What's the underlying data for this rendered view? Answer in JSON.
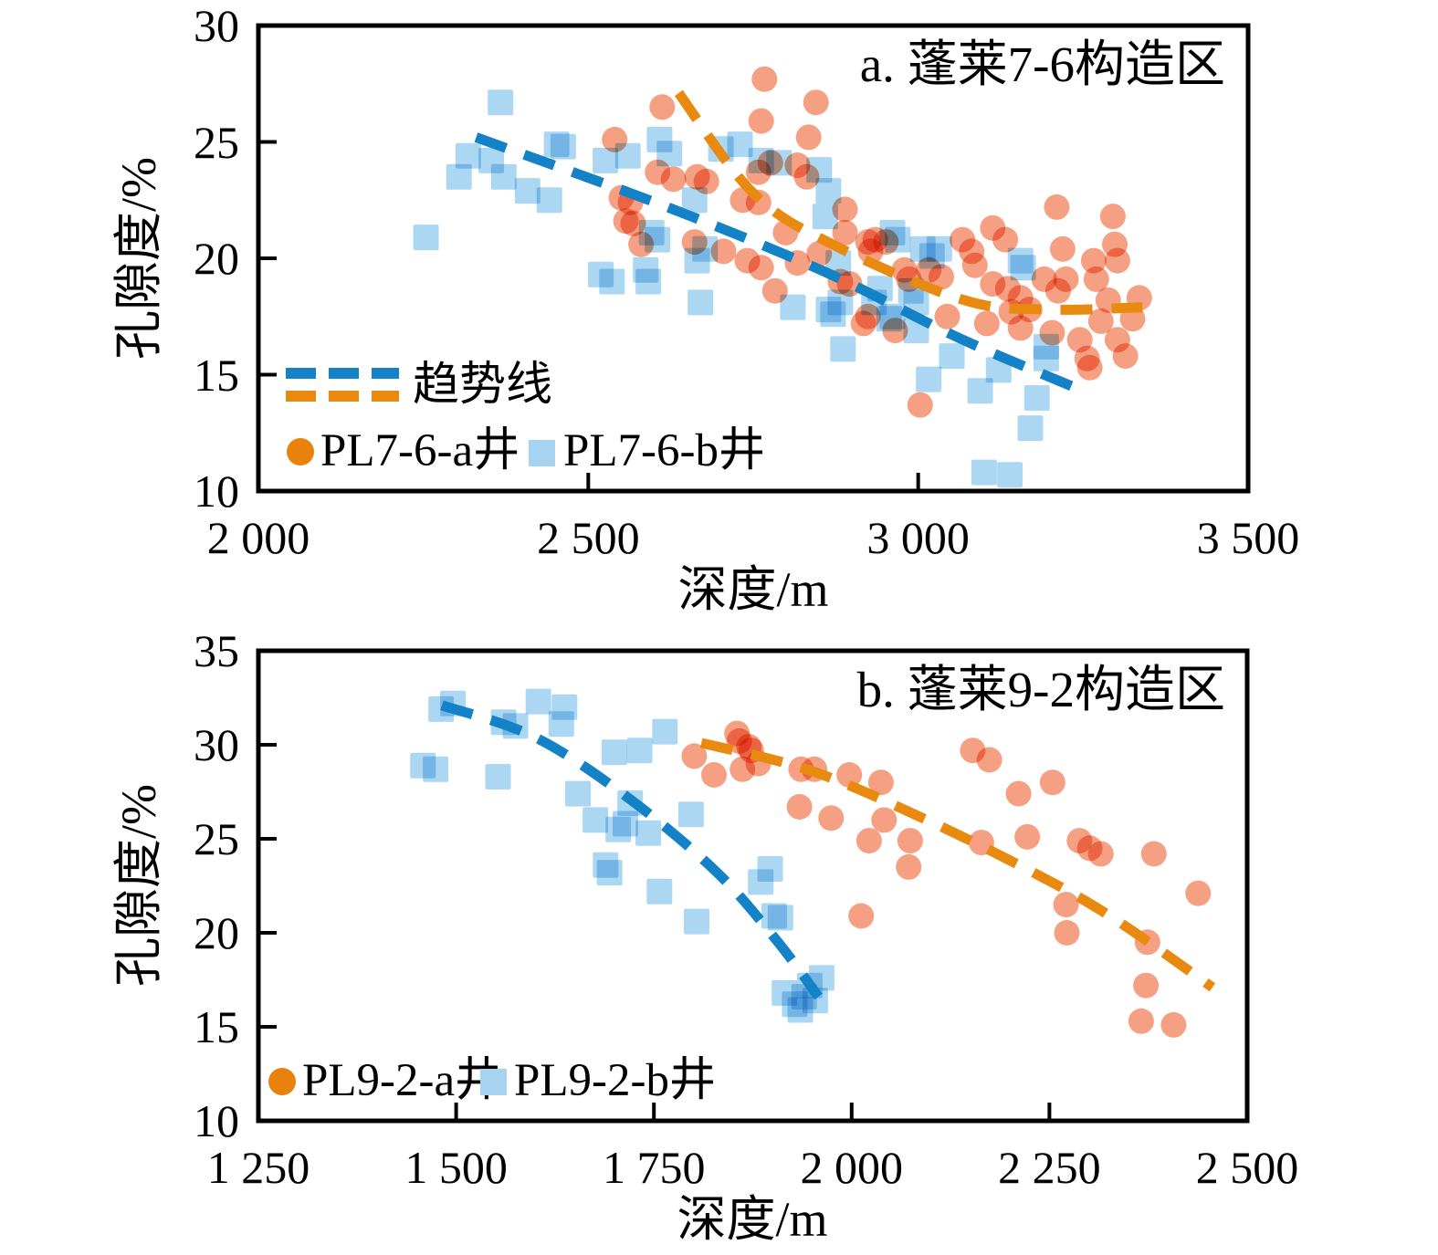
{
  "colors": {
    "marker_orange": "#F5A083",
    "marker_blue": "#ACD7F2",
    "legend_orange": "#E8820D",
    "legend_blue": "#A6D4F0",
    "trend_blue": "#1482C6",
    "trend_orange": "#E98A10",
    "axis": "#000000"
  },
  "chart_data": [
    {
      "panel": "a",
      "type": "scatter",
      "title": "a. 蓬莱7-6构造区",
      "xlabel": "深度/m",
      "ylabel": "孔隙度/%",
      "xlim": [
        2000,
        3500
      ],
      "ylim": [
        10,
        30
      ],
      "grid": false,
      "legend_position": "inside-lower-left",
      "xticks": [
        {
          "v": 2000,
          "label": "2 000"
        },
        {
          "v": 2500,
          "label": "2 500"
        },
        {
          "v": 3000,
          "label": "3 000"
        },
        {
          "v": 3500,
          "label": "3 500"
        }
      ],
      "yticks": [
        {
          "v": 10,
          "label": "10"
        },
        {
          "v": 15,
          "label": "15"
        },
        {
          "v": 20,
          "label": "20"
        },
        {
          "v": 25,
          "label": "25"
        },
        {
          "v": 30,
          "label": "30"
        }
      ],
      "legend": {
        "trend_label": "趋势线"
      },
      "series": [
        {
          "name": "PL7-6-a井",
          "marker": "circle",
          "points": [
            [
              2612,
              26.5
            ],
            [
              2767,
              27.7
            ],
            [
              2845,
              26.7
            ],
            [
              2540,
              25.1
            ],
            [
              2605,
              23.7
            ],
            [
              2629,
              23.4
            ],
            [
              2665,
              23.5
            ],
            [
              2679,
              23.3
            ],
            [
              2550,
              22.6
            ],
            [
              2564,
              22.4
            ],
            [
              2557,
              21.6
            ],
            [
              2568,
              21.5
            ],
            [
              2580,
              20.6
            ],
            [
              2661,
              20.7
            ],
            [
              2705,
              20.3
            ],
            [
              2762,
              25.9
            ],
            [
              2834,
              25.2
            ],
            [
              2758,
              23.7
            ],
            [
              2776,
              24.1
            ],
            [
              2734,
              22.5
            ],
            [
              2758,
              22.4
            ],
            [
              2817,
              24.0
            ],
            [
              2831,
              23.5
            ],
            [
              2799,
              21.1
            ],
            [
              2741,
              19.9
            ],
            [
              2762,
              19.6
            ],
            [
              2783,
              18.6
            ],
            [
              2817,
              19.8
            ],
            [
              2850,
              20.2
            ],
            [
              2889,
              22.1
            ],
            [
              2889,
              21.1
            ],
            [
              2896,
              18.9
            ],
            [
              2882,
              19.0
            ],
            [
              2924,
              20.7
            ],
            [
              2935,
              20.8
            ],
            [
              2951,
              20.7
            ],
            [
              2928,
              20.3
            ],
            [
              2979,
              19.5
            ],
            [
              2986,
              19.1
            ],
            [
              3016,
              19.5
            ],
            [
              3035,
              19.2
            ],
            [
              3067,
              20.8
            ],
            [
              3081,
              20.3
            ],
            [
              3086,
              19.7
            ],
            [
              3113,
              21.3
            ],
            [
              3132,
              20.8
            ],
            [
              3113,
              18.9
            ],
            [
              3136,
              18.7
            ],
            [
              3155,
              18.3
            ],
            [
              3141,
              17.7
            ],
            [
              3169,
              17.8
            ],
            [
              3191,
              19.1
            ],
            [
              3210,
              22.2
            ],
            [
              3219,
              20.4
            ],
            [
              3224,
              19.1
            ],
            [
              3212,
              18.6
            ],
            [
              3266,
              19.9
            ],
            [
              3270,
              19.1
            ],
            [
              3288,
              18.2
            ],
            [
              3295,
              21.8
            ],
            [
              3298,
              20.6
            ],
            [
              3302,
              19.9
            ],
            [
              3335,
              18.3
            ],
            [
              2917,
              17.2
            ],
            [
              2924,
              17.5
            ],
            [
              2965,
              16.9
            ],
            [
              3044,
              17.5
            ],
            [
              3104,
              17.2
            ],
            [
              3155,
              17.0
            ],
            [
              3203,
              16.8
            ],
            [
              3256,
              15.7
            ],
            [
              3260,
              15.3
            ],
            [
              3302,
              16.5
            ],
            [
              3314,
              15.8
            ],
            [
              3325,
              17.4
            ],
            [
              3003,
              13.7
            ],
            [
              3277,
              17.3
            ],
            [
              3245,
              16.5
            ]
          ]
        },
        {
          "name": "PL7-6-b井",
          "marker": "square",
          "points": [
            [
              2367,
              26.7
            ],
            [
              2318,
              24.4
            ],
            [
              2353,
              24.2
            ],
            [
              2304,
              23.5
            ],
            [
              2372,
              23.5
            ],
            [
              2408,
              22.9
            ],
            [
              2441,
              22.5
            ],
            [
              2452,
              24.9
            ],
            [
              2462,
              24.8
            ],
            [
              2254,
              20.9
            ],
            [
              2526,
              24.2
            ],
            [
              2560,
              24.4
            ],
            [
              2608,
              25.1
            ],
            [
              2623,
              24.5
            ],
            [
              2701,
              24.7
            ],
            [
              2789,
              24.1
            ],
            [
              2596,
              21.1
            ],
            [
              2605,
              20.8
            ],
            [
              2661,
              22.5
            ],
            [
              2677,
              20.4
            ],
            [
              2665,
              19.9
            ],
            [
              2519,
              19.3
            ],
            [
              2536,
              19.0
            ],
            [
              2587,
              19.5
            ],
            [
              2591,
              19.0
            ],
            [
              2670,
              18.1
            ],
            [
              2730,
              24.9
            ],
            [
              2762,
              24.2
            ],
            [
              2850,
              23.8
            ],
            [
              2864,
              22.9
            ],
            [
              2859,
              21.8
            ],
            [
              2879,
              19.8
            ],
            [
              2961,
              21.1
            ],
            [
              2969,
              20.8
            ],
            [
              3007,
              20.4
            ],
            [
              3021,
              20.1
            ],
            [
              3032,
              20.4
            ],
            [
              3155,
              19.9
            ],
            [
              3159,
              19.6
            ],
            [
              2942,
              18.7
            ],
            [
              2989,
              18.6
            ],
            [
              2933,
              18.1
            ],
            [
              2997,
              18.1
            ],
            [
              2961,
              17.5
            ],
            [
              2882,
              18.1
            ],
            [
              2864,
              17.8
            ],
            [
              2810,
              17.9
            ],
            [
              2871,
              17.6
            ],
            [
              2956,
              17.4
            ],
            [
              2997,
              16.9
            ],
            [
              3051,
              15.8
            ],
            [
              3016,
              14.8
            ],
            [
              3094,
              14.3
            ],
            [
              3122,
              15.2
            ],
            [
              3194,
              16.2
            ],
            [
              3194,
              15.7
            ],
            [
              3180,
              14.0
            ],
            [
              3170,
              12.7
            ],
            [
              3100,
              10.8
            ],
            [
              3139,
              10.7
            ],
            [
              2886,
              16.1
            ]
          ]
        }
      ],
      "trends": [
        {
          "name": "PL7-6-b趋势",
          "color_key": "trend_blue",
          "points": [
            [
              2330,
              25.2
            ],
            [
              2620,
              22.2
            ],
            [
              2860,
              19.4
            ],
            [
              3060,
              16.6
            ],
            [
              3250,
              14.3
            ]
          ]
        },
        {
          "name": "PL7-6-a趋势",
          "color_key": "trend_orange",
          "points": [
            [
              2637,
              27.1
            ],
            [
              2750,
              22.8
            ],
            [
              2870,
              20.6
            ],
            [
              3070,
              18.2
            ],
            [
              3200,
              17.8
            ],
            [
              3340,
              17.9
            ]
          ]
        }
      ]
    },
    {
      "panel": "b",
      "type": "scatter",
      "title": "b. 蓬莱9-2构造区",
      "xlabel": "深度/m",
      "ylabel": "孔隙度/%",
      "xlim": [
        1250,
        2500
      ],
      "ylim": [
        10,
        35
      ],
      "grid": false,
      "legend_position": "inside-lower-left",
      "xticks": [
        {
          "v": 1250,
          "label": "1 250"
        },
        {
          "v": 1500,
          "label": "1 500"
        },
        {
          "v": 1750,
          "label": "1 750"
        },
        {
          "v": 2000,
          "label": "2 000"
        },
        {
          "v": 2250,
          "label": "2 250"
        },
        {
          "v": 2500,
          "label": "2 500"
        }
      ],
      "yticks": [
        {
          "v": 10,
          "label": "10"
        },
        {
          "v": 15,
          "label": "15"
        },
        {
          "v": 20,
          "label": "20"
        },
        {
          "v": 25,
          "label": "25"
        },
        {
          "v": 30,
          "label": "30"
        },
        {
          "v": 35,
          "label": "35"
        }
      ],
      "legend": {},
      "series": [
        {
          "name": "PL9-2-a井",
          "marker": "circle",
          "points": [
            [
              1801,
              29.4
            ],
            [
              1826,
              28.4
            ],
            [
              1855,
              30.6
            ],
            [
              1858,
              30.2
            ],
            [
              1870,
              29.9
            ],
            [
              1873,
              29.7
            ],
            [
              1862,
              28.7
            ],
            [
              1882,
              29.0
            ],
            [
              1934,
              26.7
            ],
            [
              1936,
              28.7
            ],
            [
              1953,
              28.7
            ],
            [
              1997,
              28.4
            ],
            [
              2037,
              28.0
            ],
            [
              1974,
              26.1
            ],
            [
              2041,
              26.0
            ],
            [
              2022,
              24.9
            ],
            [
              2074,
              24.9
            ],
            [
              2072,
              23.5
            ],
            [
              2012,
              20.9
            ],
            [
              2153,
              29.7
            ],
            [
              2174,
              29.2
            ],
            [
              2211,
              27.4
            ],
            [
              2254,
              28.0
            ],
            [
              2164,
              24.8
            ],
            [
              2222,
              25.1
            ],
            [
              2288,
              24.9
            ],
            [
              2301,
              24.5
            ],
            [
              2315,
              24.2
            ],
            [
              2382,
              24.2
            ],
            [
              2438,
              22.1
            ],
            [
              2271,
              21.5
            ],
            [
              2272,
              20.0
            ],
            [
              2374,
              19.5
            ],
            [
              2372,
              17.2
            ],
            [
              2366,
              15.3
            ],
            [
              2407,
              15.1
            ]
          ]
        },
        {
          "name": "PL9-2-b井",
          "marker": "square",
          "points": [
            [
              1458,
              28.9
            ],
            [
              1474,
              28.7
            ],
            [
              1481,
              31.9
            ],
            [
              1496,
              32.2
            ],
            [
              1553,
              28.3
            ],
            [
              1560,
              31.2
            ],
            [
              1575,
              31.0
            ],
            [
              1604,
              32.3
            ],
            [
              1633,
              31.1
            ],
            [
              1637,
              32.0
            ],
            [
              1654,
              27.4
            ],
            [
              1676,
              26.0
            ],
            [
              1689,
              23.6
            ],
            [
              1694,
              23.2
            ],
            [
              1700,
              29.6
            ],
            [
              1705,
              25.5
            ],
            [
              1714,
              25.8
            ],
            [
              1720,
              26.9
            ],
            [
              1732,
              29.7
            ],
            [
              1743,
              25.3
            ],
            [
              1757,
              22.2
            ],
            [
              1764,
              30.7
            ],
            [
              1797,
              26.3
            ],
            [
              1804,
              20.6
            ],
            [
              1897,
              23.4
            ],
            [
              1885,
              22.7
            ],
            [
              1902,
              20.9
            ],
            [
              1910,
              20.8
            ],
            [
              1915,
              16.8
            ],
            [
              1928,
              16.2
            ],
            [
              1940,
              16.6
            ],
            [
              1947,
              17.2
            ],
            [
              1954,
              16.4
            ],
            [
              1935,
              15.9
            ],
            [
              1962,
              17.6
            ]
          ]
        }
      ],
      "trends": [
        {
          "name": "PL9-2-b趋势",
          "color_key": "trend_blue",
          "points": [
            [
              1482,
              32.1
            ],
            [
              1600,
              30.4
            ],
            [
              1720,
              27.1
            ],
            [
              1830,
              23.2
            ],
            [
              1905,
              19.6
            ],
            [
              1958,
              16.6
            ]
          ]
        },
        {
          "name": "PL9-2-a趋势",
          "color_key": "trend_orange",
          "points": [
            [
              1810,
              30.1
            ],
            [
              1950,
              28.6
            ],
            [
              2095,
              26.0
            ],
            [
              2230,
              23.2
            ],
            [
              2330,
              20.8
            ],
            [
              2456,
              17.1
            ]
          ]
        }
      ]
    }
  ]
}
